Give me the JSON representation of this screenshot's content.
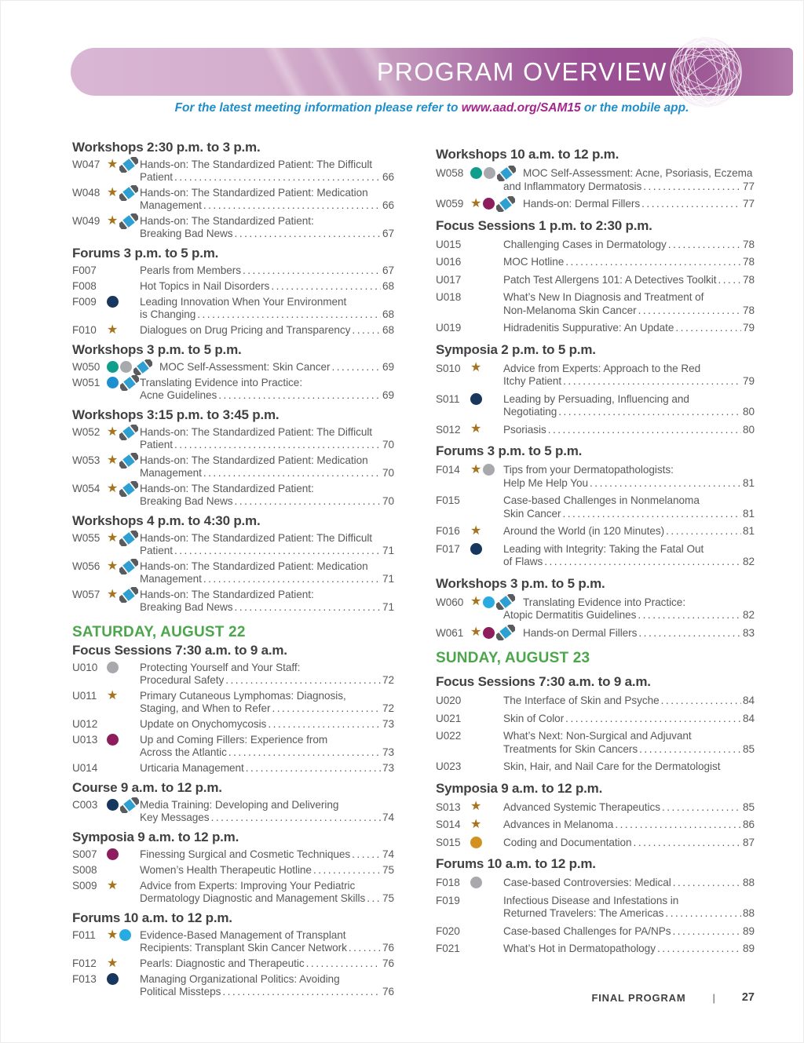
{
  "banner": {
    "title": "PROGRAM OVERVIEW"
  },
  "subtitle": {
    "prefix": "For the latest meeting information please refer to ",
    "link": "www.aad.org/SAM15",
    "suffix": " or the mobile app."
  },
  "footer": {
    "label": "FINAL PROGRAM",
    "separator": "|",
    "page_number": "27"
  },
  "colors": {
    "star": "#a5741f",
    "teal": "#0f9d8c",
    "gray": "#a7a9ac",
    "navy": "#17375e",
    "blue": "#1e8fd0",
    "cyan": "#29abe2",
    "magenta": "#8e1d5e",
    "orange": "#d3911f",
    "day_heading": "#4ca64c",
    "heading": "#414042",
    "text": "#58595b",
    "subtitle_text": "#1f8ec9",
    "subtitle_link": "#a3258c",
    "banner_light": "#d9b7d4",
    "banner_dark": "#9b5095"
  },
  "columns": [
    {
      "name": "left",
      "sections": [
        {
          "kind": "section",
          "heading": "Workshops 2:30 p.m. to 3 p.m.",
          "items": [
            {
              "code": "W047",
              "icons": [
                "star",
                "marker"
              ],
              "lines": [
                "Hands-on: The Standardized Patient: The Difficult",
                "Patient"
              ],
              "page": "66"
            },
            {
              "code": "W048",
              "icons": [
                "star",
                "marker"
              ],
              "lines": [
                "Hands-on: The Standardized Patient: Medication",
                "Management"
              ],
              "page": "66"
            },
            {
              "code": "W049",
              "icons": [
                "star",
                "marker"
              ],
              "lines": [
                "Hands-on: The Standardized Patient:",
                "Breaking Bad News"
              ],
              "page": "67"
            }
          ]
        },
        {
          "kind": "section",
          "heading": "Forums 3 p.m. to 5 p.m.",
          "items": [
            {
              "code": "F007",
              "icons": [],
              "lines": [
                "Pearls from Members"
              ],
              "page": "67"
            },
            {
              "code": "F008",
              "icons": [],
              "lines": [
                "Hot Topics in Nail Disorders"
              ],
              "page": "68"
            },
            {
              "code": "F009",
              "icons": [
                "navy-circle"
              ],
              "lines": [
                "Leading Innovation When Your Environment",
                "is Changing"
              ],
              "page": "68"
            },
            {
              "code": "F010",
              "icons": [
                "star"
              ],
              "lines": [
                "Dialogues on Drug Pricing and Transparency"
              ],
              "page": "68"
            }
          ]
        },
        {
          "kind": "section",
          "heading": "Workshops 3 p.m. to 5 p.m.",
          "items": [
            {
              "code": "W050",
              "icons": [
                "teal-circle",
                "gray-circle",
                "marker"
              ],
              "lines": [
                "MOC Self-Assessment: Skin Cancer"
              ],
              "page": "69"
            },
            {
              "code": "W051",
              "icons": [
                "blue-circle",
                "marker"
              ],
              "lines": [
                "Translating Evidence into Practice:",
                "Acne Guidelines"
              ],
              "page": "69"
            }
          ]
        },
        {
          "kind": "section",
          "heading": "Workshops 3:15 p.m. to 3:45 p.m.",
          "items": [
            {
              "code": "W052",
              "icons": [
                "star",
                "marker"
              ],
              "lines": [
                "Hands-on: The Standardized Patient: The Difficult",
                "Patient"
              ],
              "page": "70"
            },
            {
              "code": "W053",
              "icons": [
                "star",
                "marker"
              ],
              "lines": [
                "Hands-on: The Standardized Patient: Medication",
                "Management"
              ],
              "page": "70"
            },
            {
              "code": "W054",
              "icons": [
                "star",
                "marker"
              ],
              "lines": [
                "Hands-on: The Standardized Patient:",
                "Breaking Bad News"
              ],
              "page": "70"
            }
          ]
        },
        {
          "kind": "section",
          "heading": "Workshops 4 p.m. to 4:30 p.m.",
          "items": [
            {
              "code": "W055",
              "icons": [
                "star",
                "marker"
              ],
              "lines": [
                "Hands-on: The Standardized Patient: The Difficult",
                "Patient"
              ],
              "page": "71"
            },
            {
              "code": "W056",
              "icons": [
                "star",
                "marker"
              ],
              "lines": [
                "Hands-on: The Standardized Patient: Medication",
                "Management"
              ],
              "page": "71"
            },
            {
              "code": "W057",
              "icons": [
                "star",
                "marker"
              ],
              "lines": [
                "Hands-on: The Standardized Patient:",
                "Breaking Bad News"
              ],
              "page": "71"
            }
          ]
        },
        {
          "kind": "day",
          "heading": "SATURDAY, AUGUST 22",
          "items": []
        },
        {
          "kind": "section",
          "heading": "Focus Sessions 7:30 a.m. to 9 a.m.",
          "items": [
            {
              "code": "U010",
              "icons": [
                "gray-circle"
              ],
              "lines": [
                "Protecting Yourself and Your Staff:",
                "Procedural Safety"
              ],
              "page": "72"
            },
            {
              "code": "U011",
              "icons": [
                "star"
              ],
              "lines": [
                "Primary Cutaneous Lymphomas: Diagnosis,",
                "Staging, and When to Refer"
              ],
              "page": "72"
            },
            {
              "code": "U012",
              "icons": [],
              "lines": [
                "Update on Onychomycosis"
              ],
              "page": "73"
            },
            {
              "code": "U013",
              "icons": [
                "magenta-circle"
              ],
              "lines": [
                "Up and Coming Fillers: Experience from",
                "Across the Atlantic"
              ],
              "page": "73"
            },
            {
              "code": "U014",
              "icons": [],
              "lines": [
                "Urticaria Management"
              ],
              "page": "73"
            }
          ]
        },
        {
          "kind": "section",
          "heading": "Course 9 a.m. to 12 p.m.",
          "items": [
            {
              "code": "C003",
              "icons": [
                "navy-circle",
                "marker"
              ],
              "lines": [
                "Media Training: Developing and Delivering",
                "Key Messages"
              ],
              "page": "74"
            }
          ]
        },
        {
          "kind": "section",
          "heading": "Symposia 9 a.m. to 12 p.m.",
          "items": [
            {
              "code": "S007",
              "icons": [
                "magenta-circle"
              ],
              "lines": [
                "Finessing Surgical and Cosmetic Techniques"
              ],
              "page": "74"
            },
            {
              "code": "S008",
              "icons": [],
              "lines": [
                "Women’s Health Therapeutic Hotline"
              ],
              "page": "75"
            },
            {
              "code": "S009",
              "icons": [
                "star"
              ],
              "lines": [
                "Advice from Experts: Improving Your Pediatric",
                "Dermatology Diagnostic and Management Skills"
              ],
              "page": "75"
            }
          ]
        },
        {
          "kind": "section",
          "heading": "Forums 10 a.m. to 12 p.m.",
          "items": [
            {
              "code": "F011",
              "icons": [
                "star",
                "cyan-circle"
              ],
              "lines": [
                "Evidence-Based Management of Transplant",
                "Recipients: Transplant Skin Cancer Network"
              ],
              "page": "76"
            },
            {
              "code": "F012",
              "icons": [
                "star"
              ],
              "lines": [
                "Pearls: Diagnostic and Therapeutic"
              ],
              "page": "76"
            },
            {
              "code": "F013",
              "icons": [
                "navy-circle"
              ],
              "lines": [
                "Managing Organizational Politics: Avoiding",
                "Political Missteps"
              ],
              "page": "76"
            }
          ]
        }
      ]
    },
    {
      "name": "right",
      "sections": [
        {
          "kind": "section",
          "heading": "Workshops 10 a.m. to 12 p.m.",
          "items": [
            {
              "code": "W058",
              "icons": [
                "teal-circle",
                "gray-circle",
                "marker"
              ],
              "lines": [
                "MOC Self-Assessment: Acne, Psoriasis, Eczema",
                "and Inflammatory Dermatosis"
              ],
              "page": "77"
            },
            {
              "code": "W059",
              "icons": [
                "star",
                "magenta-circle",
                "marker"
              ],
              "lines": [
                "Hands-on: Dermal Fillers"
              ],
              "page": "77"
            }
          ]
        },
        {
          "kind": "section",
          "heading": "Focus Sessions 1 p.m. to 2:30 p.m.",
          "items": [
            {
              "code": "U015",
              "icons": [],
              "lines": [
                "Challenging Cases in Dermatology"
              ],
              "page": "78"
            },
            {
              "code": "U016",
              "icons": [],
              "lines": [
                "MOC Hotline"
              ],
              "page": "78"
            },
            {
              "code": "U017",
              "icons": [],
              "lines": [
                "Patch Test Allergens 101: A Detectives Toolkit"
              ],
              "page": "78"
            },
            {
              "code": "U018",
              "icons": [],
              "lines": [
                "What’s New In Diagnosis and Treatment of",
                "Non-Melanoma Skin Cancer"
              ],
              "page": "78"
            },
            {
              "code": "U019",
              "icons": [],
              "lines": [
                "Hidradenitis Suppurative: An Update"
              ],
              "page": "79"
            }
          ]
        },
        {
          "kind": "section",
          "heading": "Symposia 2 p.m. to 5 p.m.",
          "items": [
            {
              "code": "S010",
              "icons": [
                "star"
              ],
              "lines": [
                "Advice from Experts: Approach to the Red",
                "Itchy Patient"
              ],
              "page": "79"
            },
            {
              "code": "S011",
              "icons": [
                "navy-circle"
              ],
              "lines": [
                "Leading by Persuading, Influencing and",
                "Negotiating"
              ],
              "page": "80"
            },
            {
              "code": "S012",
              "icons": [
                "star"
              ],
              "lines": [
                "Psoriasis"
              ],
              "page": "80"
            }
          ]
        },
        {
          "kind": "section",
          "heading": "Forums 3 p.m. to 5 p.m.",
          "items": [
            {
              "code": "F014",
              "icons": [
                "star",
                "gray-circle"
              ],
              "lines": [
                "Tips from your Dermatopathologists:",
                "Help Me Help You"
              ],
              "page": "81"
            },
            {
              "code": "F015",
              "icons": [],
              "lines": [
                "Case-based Challenges in Nonmelanoma",
                "Skin Cancer"
              ],
              "page": "81"
            },
            {
              "code": "F016",
              "icons": [
                "star"
              ],
              "lines": [
                "Around the World (in 120 Minutes)"
              ],
              "page": "81"
            },
            {
              "code": "F017",
              "icons": [
                "navy-circle"
              ],
              "lines": [
                "Leading with Integrity: Taking the Fatal Out",
                "of Flaws"
              ],
              "page": "82"
            }
          ]
        },
        {
          "kind": "section",
          "heading": "Workshops 3 p.m. to 5 p.m.",
          "items": [
            {
              "code": "W060",
              "icons": [
                "star",
                "cyan-circle",
                "marker"
              ],
              "lines": [
                "Translating Evidence into Practice:",
                "Atopic Dermatitis Guidelines"
              ],
              "page": "82"
            },
            {
              "code": "W061",
              "icons": [
                "star",
                "magenta-circle",
                "marker"
              ],
              "lines": [
                "Hands-on Dermal Fillers"
              ],
              "page": "83"
            }
          ]
        },
        {
          "kind": "day",
          "heading": "SUNDAY, AUGUST 23",
          "items": []
        },
        {
          "kind": "section",
          "heading": "Focus Sessions 7:30 a.m. to 9 a.m.",
          "items": [
            {
              "code": "U020",
              "icons": [],
              "lines": [
                "The Interface of Skin and Psyche"
              ],
              "page": "84"
            },
            {
              "code": "U021",
              "icons": [],
              "lines": [
                "Skin of Color"
              ],
              "page": "84"
            },
            {
              "code": "U022",
              "icons": [],
              "lines": [
                "What’s Next: Non-Surgical and Adjuvant",
                "Treatments for Skin Cancers"
              ],
              "page": "85"
            },
            {
              "code": "U023",
              "icons": [],
              "lines": [
                "Skin, Hair, and Nail Care for the Dermatologist"
              ],
              "page": ""
            }
          ]
        },
        {
          "kind": "section",
          "heading": "Symposia 9 a.m. to 12 p.m.",
          "items": [
            {
              "code": "S013",
              "icons": [
                "star"
              ],
              "lines": [
                "Advanced Systemic Therapeutics"
              ],
              "page": "85"
            },
            {
              "code": "S014",
              "icons": [
                "star"
              ],
              "lines": [
                "Advances in Melanoma"
              ],
              "page": "86"
            },
            {
              "code": "S015",
              "icons": [
                "orange-circle"
              ],
              "lines": [
                "Coding and Documentation"
              ],
              "page": "87"
            }
          ]
        },
        {
          "kind": "section",
          "heading": "Forums 10 a.m. to 12 p.m.",
          "items": [
            {
              "code": "F018",
              "icons": [
                "gray-circle"
              ],
              "lines": [
                "Case-based Controversies: Medical"
              ],
              "page": "88"
            },
            {
              "code": "F019",
              "icons": [],
              "lines": [
                "Infectious Disease and Infestations in",
                "Returned Travelers: The Americas"
              ],
              "page": "88"
            },
            {
              "code": "F020",
              "icons": [],
              "lines": [
                "Case-based Challenges for PA/NPs"
              ],
              "page": "89"
            },
            {
              "code": "F021",
              "icons": [],
              "lines": [
                "What’s Hot in Dermatopathology"
              ],
              "page": "89"
            }
          ]
        }
      ]
    }
  ]
}
